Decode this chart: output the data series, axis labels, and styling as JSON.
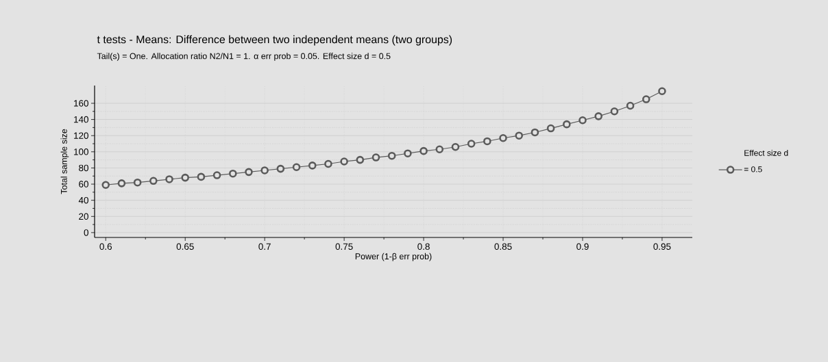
{
  "chart_data": {
    "type": "line",
    "title": "t tests - Means: Difference between two independent means (two groups)",
    "subtitle": "Tail(s) = One. Allocation ratio N2/N1 = 1. α err prob = 0.05. Effect size d = 0.5",
    "xlabel": "Power (1-β err prob)",
    "ylabel": "Total sample size",
    "legend_title": "Effect size d",
    "x": [
      0.6,
      0.61,
      0.62,
      0.63,
      0.64,
      0.65,
      0.66,
      0.67,
      0.68,
      0.69,
      0.7,
      0.71,
      0.72,
      0.73,
      0.74,
      0.75,
      0.76,
      0.77,
      0.78,
      0.79,
      0.8,
      0.81,
      0.82,
      0.83,
      0.84,
      0.85,
      0.86,
      0.87,
      0.88,
      0.89,
      0.9,
      0.91,
      0.92,
      0.93,
      0.94,
      0.95
    ],
    "series": [
      {
        "name": "= 0.5",
        "color": "#5a5a5a",
        "values": [
          59,
          61,
          62,
          64,
          66,
          68,
          69,
          71,
          73,
          75,
          77,
          79,
          81,
          83,
          85,
          88,
          90,
          93,
          95,
          98,
          101,
          103,
          106,
          110,
          113,
          117,
          120,
          124,
          129,
          134,
          139,
          144,
          150,
          157,
          165,
          175
        ]
      }
    ],
    "xlim": [
      0.593,
      0.969
    ],
    "ylim": [
      -6,
      182
    ],
    "xticks": [
      0.6,
      0.65,
      0.7,
      0.75,
      0.8,
      0.85,
      0.9,
      0.95
    ],
    "yticks": [
      0,
      20,
      40,
      60,
      80,
      100,
      120,
      140,
      160
    ],
    "grid": true,
    "legend": "right",
    "marker": "circle",
    "line_style": "solid"
  }
}
